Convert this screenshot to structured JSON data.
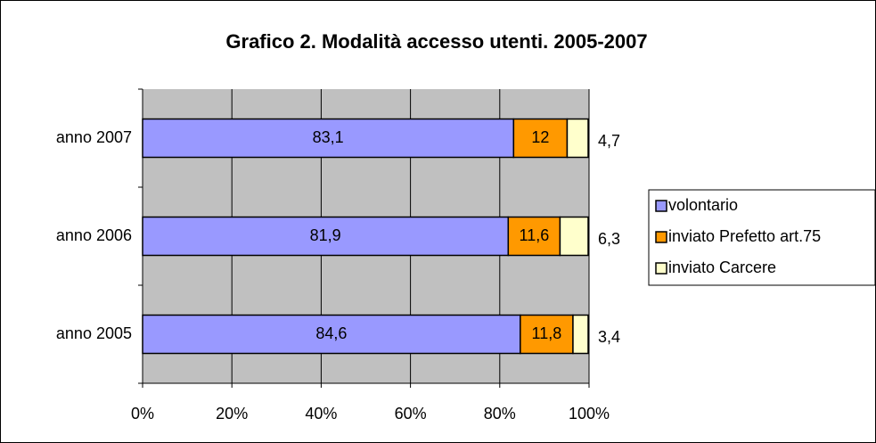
{
  "chart_data": {
    "type": "stacked_bar_horizontal",
    "title": "Grafico 2. Modalità accesso utenti. 2005-2007",
    "categories": [
      "anno 2007",
      "anno 2006",
      "anno 2005"
    ],
    "series": [
      {
        "name": "volontario",
        "color": "#9999ff",
        "values": [
          83.1,
          81.9,
          84.6
        ],
        "value_labels": [
          "83,1",
          "81,9",
          "84,6"
        ]
      },
      {
        "name": "inviato Prefetto art.75",
        "color": "#ff9900",
        "values": [
          12,
          11.6,
          11.8
        ],
        "value_labels": [
          "12",
          "11,6",
          "11,8"
        ]
      },
      {
        "name": "inviato Carcere",
        "color": "#ffffcc",
        "values": [
          4.7,
          6.3,
          3.4
        ],
        "value_labels": [
          "4,7",
          "6,3",
          "3,4"
        ]
      }
    ],
    "xlim": [
      0,
      100
    ],
    "xticks": [
      {
        "value": 0,
        "label": "0%"
      },
      {
        "value": 20,
        "label": "20%"
      },
      {
        "value": 40,
        "label": "40%"
      },
      {
        "value": 60,
        "label": "60%"
      },
      {
        "value": 80,
        "label": "80%"
      },
      {
        "value": 100,
        "label": "100%"
      }
    ],
    "grid": true,
    "legend": "right"
  }
}
